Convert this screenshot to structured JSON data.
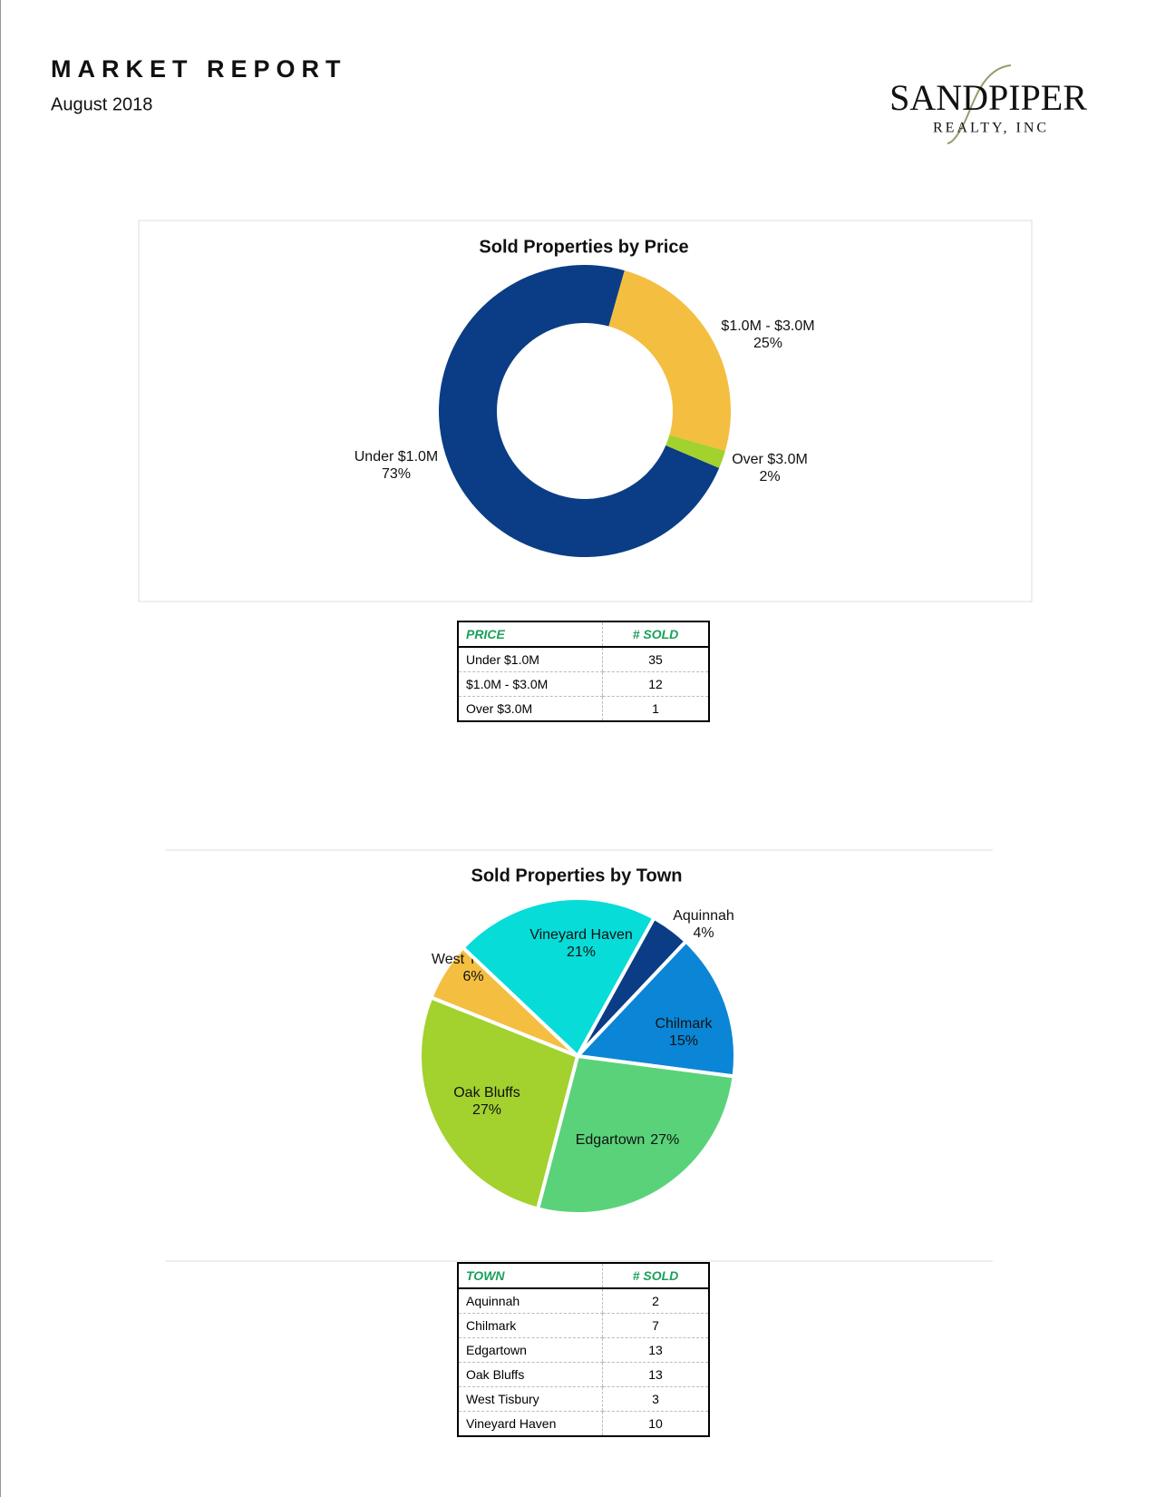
{
  "header": {
    "title": "MARKET REPORT",
    "date": "August 2018"
  },
  "logo": {
    "name": "SANDPIPER",
    "sub": "REALTY, INC"
  },
  "chart_data": [
    {
      "type": "donut",
      "title": "Sold Properties by Price",
      "categories": [
        "Under $1.0M",
        "$1.0M - $3.0M",
        "Over $3.0M"
      ],
      "values": [
        73,
        25,
        2
      ],
      "value_labels": [
        "73%",
        "25%",
        "2%"
      ],
      "colors": [
        "#0a3d85",
        "#f4be41",
        "#a3d12e"
      ]
    },
    {
      "type": "pie",
      "title": "Sold Properties by Town",
      "categories": [
        "Aquinnah",
        "Chilmark",
        "Edgartown",
        "Oak Bluffs",
        "West Tisbury",
        "Vineyard Haven"
      ],
      "values": [
        4,
        15,
        27,
        27,
        6,
        21
      ],
      "value_labels": [
        "4%",
        "15%",
        "27%",
        "27%",
        "6%",
        "21%"
      ],
      "colors": [
        "#0a3d85",
        "#0b86d6",
        "#5ad27a",
        "#a3d12e",
        "#f4be41",
        "#07dcd8"
      ]
    }
  ],
  "tables": [
    {
      "header": [
        "PRICE",
        "# SOLD"
      ],
      "rows": [
        [
          "Under $1.0M",
          35
        ],
        [
          "$1.0M - $3.0M",
          12
        ],
        [
          "Over $3.0M",
          1
        ]
      ]
    },
    {
      "header": [
        "TOWN",
        "# SOLD"
      ],
      "rows": [
        [
          "Aquinnah",
          2
        ],
        [
          "Chilmark",
          7
        ],
        [
          "Edgartown",
          13
        ],
        [
          "Oak Bluffs",
          13
        ],
        [
          "West Tisbury",
          3
        ],
        [
          "Vineyard Haven",
          10
        ]
      ]
    }
  ]
}
